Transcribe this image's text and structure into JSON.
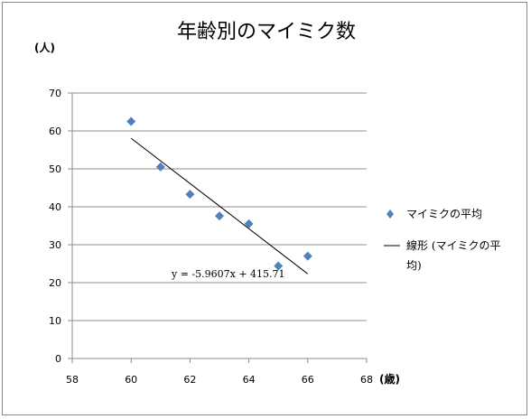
{
  "chart_data": {
    "type": "scatter",
    "title": "年齢別のマイミク数",
    "xlabel": "(歳)",
    "ylabel": "(人)",
    "xlim": [
      58,
      68
    ],
    "ylim": [
      0,
      70
    ],
    "x_ticks": [
      58,
      60,
      62,
      64,
      66,
      68
    ],
    "y_ticks": [
      0,
      10,
      20,
      30,
      40,
      50,
      60,
      70
    ],
    "grid": true,
    "legend_position": "right",
    "series": [
      {
        "name": "マイミクの平均",
        "color": "#4f81bd",
        "marker": "diamond",
        "x": [
          60,
          61,
          62,
          63,
          64,
          65,
          66
        ],
        "y": [
          62.5,
          50.5,
          43.3,
          37.6,
          35.5,
          24.4,
          27.0
        ]
      }
    ],
    "trendline": {
      "name": "線形 (マイミクの平均)",
      "color": "#000000",
      "slope": -5.9607,
      "intercept": 415.71,
      "x_range": [
        60,
        66
      ],
      "equation": "y = -5.9607x + 415.71"
    }
  }
}
